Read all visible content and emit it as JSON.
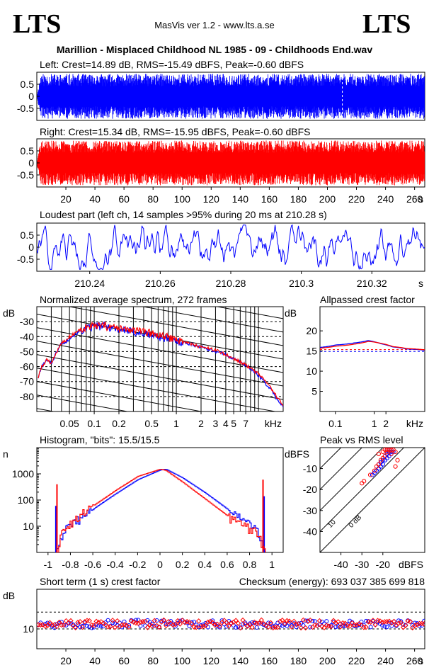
{
  "header": {
    "logo_left": "LTS",
    "logo_right": "LTS",
    "app_version": "MasVis ver 1.2 - www.lts.a.se",
    "file_title": "Marillion - Misplaced Childhood NL 1985 - 09 - Childhoods End.wav"
  },
  "colors": {
    "left": "#0000ff",
    "right": "#ff0000",
    "axis": "#000000",
    "grid": "#000000"
  },
  "chart_data": [
    {
      "id": "left_waveform",
      "type": "area",
      "title": "Left: Crest=14.89 dB, RMS=-15.49 dBFS, Peak=-0.60 dBFS",
      "series": [
        {
          "color": "#0000ff",
          "envelope_max": 0.93,
          "envelope_min": -0.93
        }
      ],
      "ylim": [
        -1,
        1
      ],
      "yticks": [
        0.5,
        0,
        -0.5
      ],
      "ytick_labels": [
        "0.5",
        "0",
        "-0.5"
      ],
      "xlim": [
        0,
        267
      ],
      "marker_time": 210.28
    },
    {
      "id": "right_waveform",
      "type": "area",
      "title": "Right: Crest=15.34 dB, RMS=-15.95 dBFS, Peak=-0.60 dBFS",
      "series": [
        {
          "color": "#ff0000",
          "envelope_max": 0.93,
          "envelope_min": -0.93
        }
      ],
      "ylim": [
        -1,
        1
      ],
      "yticks": [
        0.5,
        0,
        -0.5
      ],
      "ytick_labels": [
        "0.5",
        "0",
        "-0.5"
      ],
      "xlim": [
        0,
        267
      ],
      "xticks": [
        20,
        40,
        60,
        80,
        100,
        120,
        140,
        160,
        180,
        200,
        220,
        240,
        260
      ],
      "xtick_labels": [
        "20",
        "40",
        "60",
        "80",
        "100",
        "120",
        "140",
        "160",
        "180",
        "200",
        "220",
        "240",
        "260"
      ],
      "xunit": "s"
    },
    {
      "id": "loudest_part",
      "type": "line",
      "title": "Loudest part (left  ch, 14 samples >95% during 20 ms at 210.28 s)",
      "series": [
        {
          "color": "#0000ff"
        }
      ],
      "ylim": [
        -1,
        1
      ],
      "yticks": [
        0.5,
        0,
        -0.5
      ],
      "ytick_labels": [
        "0.5",
        "0",
        "-0.5"
      ],
      "xlim": [
        210.225,
        210.335
      ],
      "xticks": [
        210.24,
        210.26,
        210.28,
        210.3,
        210.32
      ],
      "xtick_labels": [
        "210.24",
        "210.26",
        "210.28",
        "210.3",
        "210.32"
      ],
      "xunit": "s"
    },
    {
      "id": "spectrum",
      "type": "line",
      "title": "Normalized average spectrum, 272 frames",
      "ylabel": "dB",
      "xunit": "kHz",
      "xscale": "log",
      "xlim": [
        0.02,
        20
      ],
      "ylim": [
        -90,
        -20
      ],
      "yticks": [
        -30,
        -40,
        -50,
        -60,
        -70,
        -80
      ],
      "ytick_labels": [
        "-30",
        "-40",
        "-50",
        "-60",
        "-70",
        "-80"
      ],
      "xticks": [
        0.05,
        0.1,
        0.2,
        0.5,
        1,
        2,
        3,
        4,
        5,
        7
      ],
      "xtick_labels": [
        "0.05",
        "0.1",
        "0.2",
        "0.5",
        "1",
        "2",
        "3",
        "4",
        "5",
        "7"
      ],
      "series": [
        {
          "channel": "left",
          "color": "#0000ff",
          "x": [
            0.02,
            0.023,
            0.027,
            0.03,
            0.035,
            0.04,
            0.045,
            0.05,
            0.06,
            0.07,
            0.08,
            0.1,
            0.13,
            0.17,
            0.2,
            0.3,
            0.5,
            0.7,
            1,
            1.5,
            2,
            3,
            4,
            5,
            7,
            10,
            13,
            17,
            20
          ],
          "y": [
            -70,
            -60,
            -55,
            -58,
            -50,
            -44,
            -44,
            -41,
            -38,
            -36,
            -35,
            -33,
            -33,
            -34,
            -35,
            -37,
            -39,
            -41,
            -43,
            -45,
            -47,
            -50,
            -52,
            -55,
            -59,
            -66,
            -73,
            -82,
            -87
          ]
        },
        {
          "channel": "right",
          "color": "#ff0000",
          "x": [
            0.02,
            0.023,
            0.027,
            0.03,
            0.035,
            0.04,
            0.045,
            0.05,
            0.06,
            0.07,
            0.08,
            0.1,
            0.13,
            0.17,
            0.2,
            0.3,
            0.5,
            0.7,
            1,
            1.5,
            2,
            3,
            4,
            5,
            7,
            10,
            13,
            17,
            20
          ],
          "y": [
            -70,
            -60,
            -55,
            -58,
            -50,
            -44,
            -43,
            -40,
            -37,
            -35,
            -34,
            -33,
            -33,
            -34,
            -35,
            -36,
            -38,
            -40,
            -42,
            -45,
            -47,
            -49,
            -52,
            -55,
            -59,
            -65,
            -72,
            -81,
            -86
          ]
        }
      ]
    },
    {
      "id": "allpassed_crest",
      "type": "line",
      "title": "Allpassed crest factor",
      "ylabel": "dB",
      "xunit": "kHz",
      "xscale": "log",
      "xlim": [
        0.04,
        20
      ],
      "ylim": [
        0,
        26
      ],
      "yticks": [
        20,
        15,
        10,
        5
      ],
      "ytick_labels": [
        "20",
        "15",
        "10",
        "5"
      ],
      "xticks": [
        0.1,
        1,
        2
      ],
      "xtick_labels": [
        "0.1",
        "1",
        "2"
      ],
      "reference_lines": [
        14.89,
        15.34
      ],
      "series": [
        {
          "channel": "left",
          "color": "#0000ff",
          "x": [
            0.04,
            0.1,
            0.3,
            0.7,
            1.5,
            3,
            7,
            20
          ],
          "y": [
            15.9,
            16.5,
            17.0,
            17.6,
            16.8,
            16.0,
            15.5,
            15.2
          ]
        },
        {
          "channel": "right",
          "color": "#ff0000",
          "x": [
            0.04,
            0.1,
            0.3,
            0.7,
            1.5,
            3,
            7,
            20
          ],
          "y": [
            15.7,
            16.2,
            16.7,
            17.4,
            16.9,
            16.1,
            15.6,
            15.3
          ]
        }
      ]
    },
    {
      "id": "histogram",
      "type": "line",
      "title": "Histogram, \"bits\": 15.5/15.5",
      "ylabel": "n",
      "yscale": "log",
      "ylim": [
        1,
        10000
      ],
      "yticks": [
        1000,
        100,
        10
      ],
      "ytick_labels": [
        "1000",
        "100",
        "10"
      ],
      "xlim": [
        -1.1,
        1.1
      ],
      "xticks": [
        -1,
        -0.8,
        -0.6,
        -0.4,
        -0.2,
        0,
        0.2,
        0.4,
        0.6,
        0.8,
        1
      ],
      "xtick_labels": [
        "-1",
        "-0.8",
        "-0.6",
        "-0.4",
        "-0.2",
        "0",
        "0.2",
        "0.4",
        "0.6",
        "0.8",
        "1"
      ],
      "series": [
        {
          "channel": "left",
          "color": "#0000ff",
          "x": [
            -0.93,
            -0.88,
            -0.8,
            -0.6,
            -0.4,
            -0.2,
            0,
            0.05,
            0.2,
            0.4,
            0.6,
            0.8,
            0.88,
            0.93
          ],
          "y": [
            1,
            5,
            12,
            45,
            170,
            600,
            1400,
            1500,
            700,
            190,
            45,
            12,
            5,
            1
          ]
        },
        {
          "channel": "right",
          "color": "#ff0000",
          "x": [
            -0.93,
            -0.88,
            -0.8,
            -0.6,
            -0.4,
            -0.2,
            0,
            0.05,
            0.2,
            0.4,
            0.6,
            0.8,
            0.88,
            0.93
          ],
          "y": [
            1,
            6,
            14,
            60,
            230,
            800,
            1500,
            1350,
            480,
            110,
            25,
            8,
            5,
            1
          ]
        }
      ]
    },
    {
      "id": "peak_vs_rms",
      "type": "scatter",
      "title": "Peak vs RMS level",
      "ylabel": "dBFS",
      "xlabel": "dBFS",
      "xlim": [
        -50,
        0
      ],
      "ylim": [
        -50,
        0
      ],
      "yticks": [
        -10,
        -20,
        -30,
        -40
      ],
      "ytick_labels": [
        "-10",
        "-20",
        "-30",
        "-40"
      ],
      "xticks": [
        -40,
        -30,
        -20
      ],
      "xtick_labels": [
        "-40",
        "-30",
        "-20"
      ],
      "diagonals": [
        {
          "offset": 0,
          "label": "0 dB"
        },
        {
          "offset": 10,
          "label": "10"
        },
        {
          "offset": 20,
          "label": "20"
        },
        {
          "offset": 30,
          "label": "30"
        },
        {
          "offset": 40,
          "label": "40"
        }
      ],
      "series": [
        {
          "channel": "left",
          "color": "#0000ff",
          "points": [
            [
              -25,
              -13
            ],
            [
              -24,
              -12
            ],
            [
              -23,
              -11
            ],
            [
              -22,
              -10
            ],
            [
              -21,
              -9
            ],
            [
              -20,
              -8
            ],
            [
              -19,
              -6
            ],
            [
              -18,
              -5
            ],
            [
              -17,
              -4
            ],
            [
              -16,
              -3
            ],
            [
              -15,
              -2
            ],
            [
              -16,
              -2
            ],
            [
              -17,
              -2
            ],
            [
              -18,
              -3
            ],
            [
              -19,
              -4
            ],
            [
              -20,
              -6
            ],
            [
              -21,
              -7
            ],
            [
              -22,
              -8
            ],
            [
              -18,
              -1
            ],
            [
              -17,
              -1
            ],
            [
              -16,
              -1
            ]
          ]
        },
        {
          "channel": "right",
          "color": "#ff0000",
          "points": [
            [
              -30,
              -17
            ],
            [
              -29,
              -16
            ],
            [
              -26,
              -13
            ],
            [
              -24,
              -11
            ],
            [
              -23,
              -9
            ],
            [
              -22,
              -8
            ],
            [
              -21,
              -6
            ],
            [
              -20,
              -5
            ],
            [
              -19,
              -4
            ],
            [
              -18,
              -2
            ],
            [
              -17,
              -1
            ],
            [
              -16,
              -1
            ],
            [
              -15,
              -1
            ],
            [
              -14,
              -2
            ],
            [
              -13,
              -6
            ],
            [
              -14,
              -9
            ],
            [
              -16,
              -3
            ],
            [
              -18,
              -1
            ],
            [
              -20,
              -2
            ],
            [
              -22,
              -3
            ],
            [
              -19,
              -1
            ]
          ]
        }
      ]
    },
    {
      "id": "short_term_crest",
      "type": "scatter",
      "title": "Short term (1 s) crest factor",
      "ylabel": "dB",
      "xunit": "s",
      "xlim": [
        0,
        267
      ],
      "ylim": [
        0,
        30
      ],
      "yticks": [
        10
      ],
      "ytick_labels": [
        "10"
      ],
      "reference_lines": [
        10,
        18.5
      ],
      "xticks": [
        20,
        40,
        60,
        80,
        100,
        120,
        140,
        160,
        180,
        200,
        220,
        240,
        260
      ],
      "xtick_labels": [
        "20",
        "40",
        "60",
        "80",
        "100",
        "120",
        "140",
        "160",
        "180",
        "200",
        "220",
        "240",
        "260"
      ],
      "mean_db": 12.5,
      "spread_db": 4,
      "series": [
        {
          "channel": "left",
          "color": "#0000ff",
          "marker": "circle"
        },
        {
          "channel": "right",
          "color": "#ff0000",
          "marker": "diamond"
        }
      ]
    }
  ],
  "checksum": "Checksum (energy):  693 037 385 699 818"
}
